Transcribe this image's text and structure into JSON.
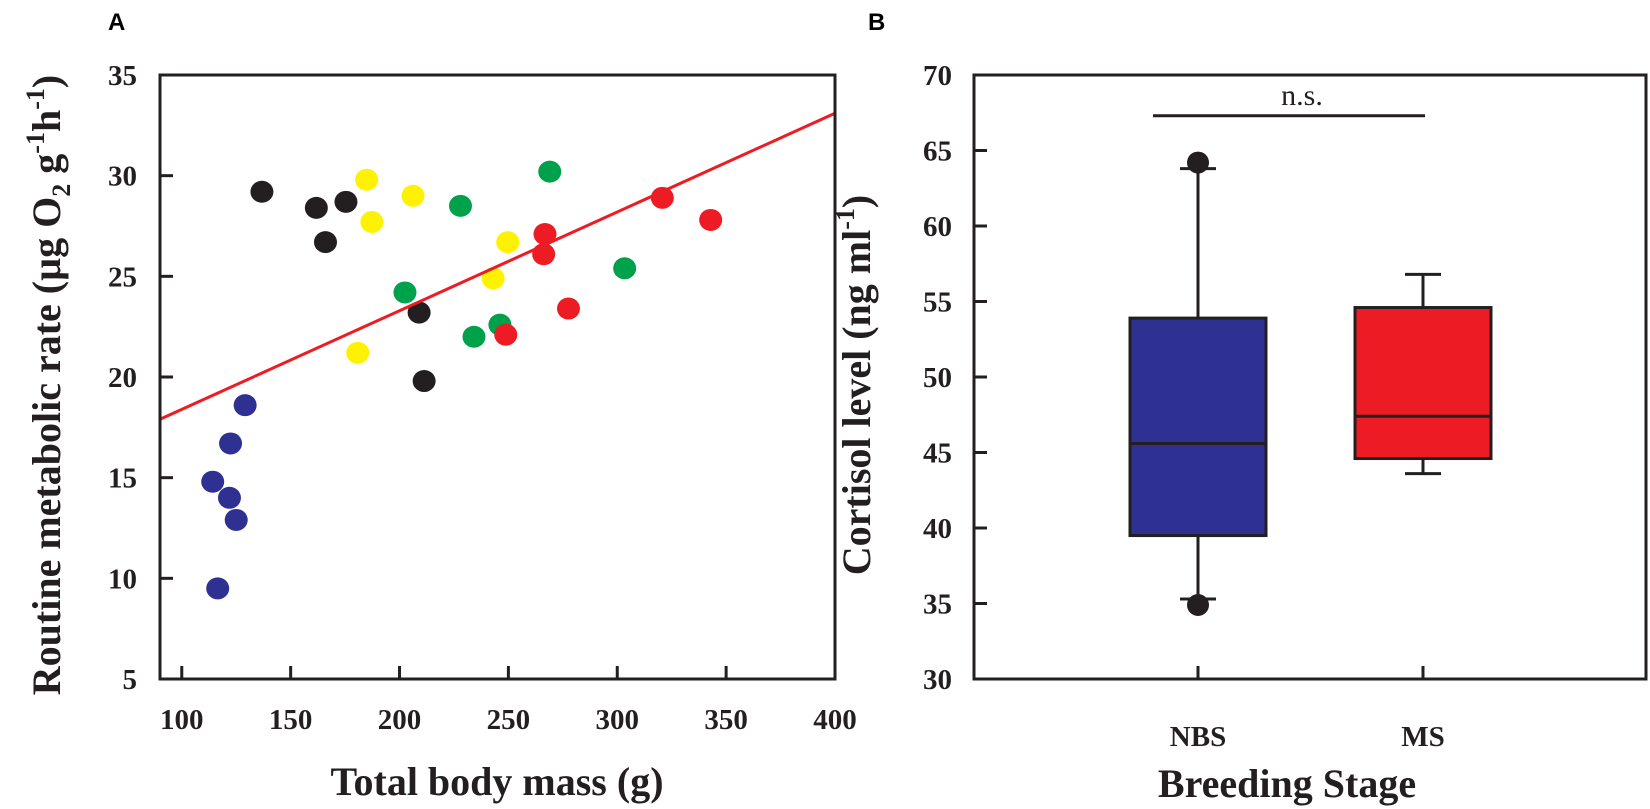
{
  "chart_data": [
    {
      "panel": "A",
      "type": "scatter",
      "xlabel": "Total body mass (g)",
      "ylabel_parts": [
        "Routine metabolic rate (µg O",
        "2",
        " g",
        "-1",
        "h",
        "-1",
        ")"
      ],
      "xlim": [
        90,
        400
      ],
      "ylim": [
        5,
        35
      ],
      "xticks": [
        100,
        150,
        200,
        250,
        300,
        350,
        400
      ],
      "yticks": [
        5,
        10,
        15,
        20,
        25,
        30,
        35
      ],
      "series": [
        {
          "name": "blue",
          "color": "#2e3192",
          "points": [
            [
              129.1,
              18.6
            ],
            [
              122.4,
              16.7
            ],
            [
              114.2,
              14.8
            ],
            [
              121.9,
              14.0
            ],
            [
              125.0,
              12.9
            ],
            [
              116.5,
              9.5
            ]
          ]
        },
        {
          "name": "black",
          "color": "#231f20",
          "points": [
            [
              136.8,
              29.2
            ],
            [
              161.8,
              28.4
            ],
            [
              175.4,
              28.7
            ],
            [
              166.0,
              26.7
            ],
            [
              209.0,
              23.2
            ],
            [
              211.3,
              19.8
            ]
          ]
        },
        {
          "name": "yellow",
          "color": "#fff200",
          "points": [
            [
              184.9,
              29.8
            ],
            [
              206.2,
              29.0
            ],
            [
              187.3,
              27.7
            ],
            [
              180.8,
              21.2
            ],
            [
              249.7,
              26.7
            ],
            [
              243.0,
              24.9
            ]
          ]
        },
        {
          "name": "green",
          "color": "#00a14b",
          "points": [
            [
              228.0,
              28.5
            ],
            [
              202.5,
              24.2
            ],
            [
              234.2,
              22.0
            ],
            [
              269.0,
              30.2
            ],
            [
              303.4,
              25.4
            ],
            [
              246.1,
              22.6
            ]
          ]
        },
        {
          "name": "red",
          "color": "#ed1c24",
          "points": [
            [
              320.7,
              28.9
            ],
            [
              342.9,
              27.8
            ],
            [
              266.8,
              27.1
            ],
            [
              266.2,
              26.1
            ],
            [
              277.6,
              23.4
            ],
            [
              248.8,
              22.1
            ]
          ]
        }
      ],
      "regression": {
        "color": "#ed1c24",
        "x": [
          90,
          400
        ],
        "y": [
          17.9,
          33.1
        ]
      }
    },
    {
      "panel": "B",
      "type": "box",
      "xlabel": "Breeding Stage",
      "ylabel_parts": [
        "Cortisol level (ng ml",
        "-1",
        ")"
      ],
      "ylim": [
        30,
        70
      ],
      "yticks": [
        30,
        35,
        40,
        45,
        50,
        55,
        60,
        65,
        70
      ],
      "categories": [
        "NBS",
        "MS"
      ],
      "boxes": [
        {
          "category": "NBS",
          "color": "#2e3192",
          "whisker_low": 35.3,
          "q1": 39.5,
          "median": 45.6,
          "q3": 53.9,
          "whisker_high": 63.8,
          "outliers": [
            64.2,
            34.9
          ]
        },
        {
          "category": "MS",
          "color": "#ed1c24",
          "whisker_low": 43.6,
          "q1": 44.6,
          "median": 47.4,
          "q3": 54.6,
          "whisker_high": 56.8,
          "outliers": []
        }
      ],
      "significance": {
        "label": "n.s.",
        "y": 67.3
      }
    }
  ]
}
